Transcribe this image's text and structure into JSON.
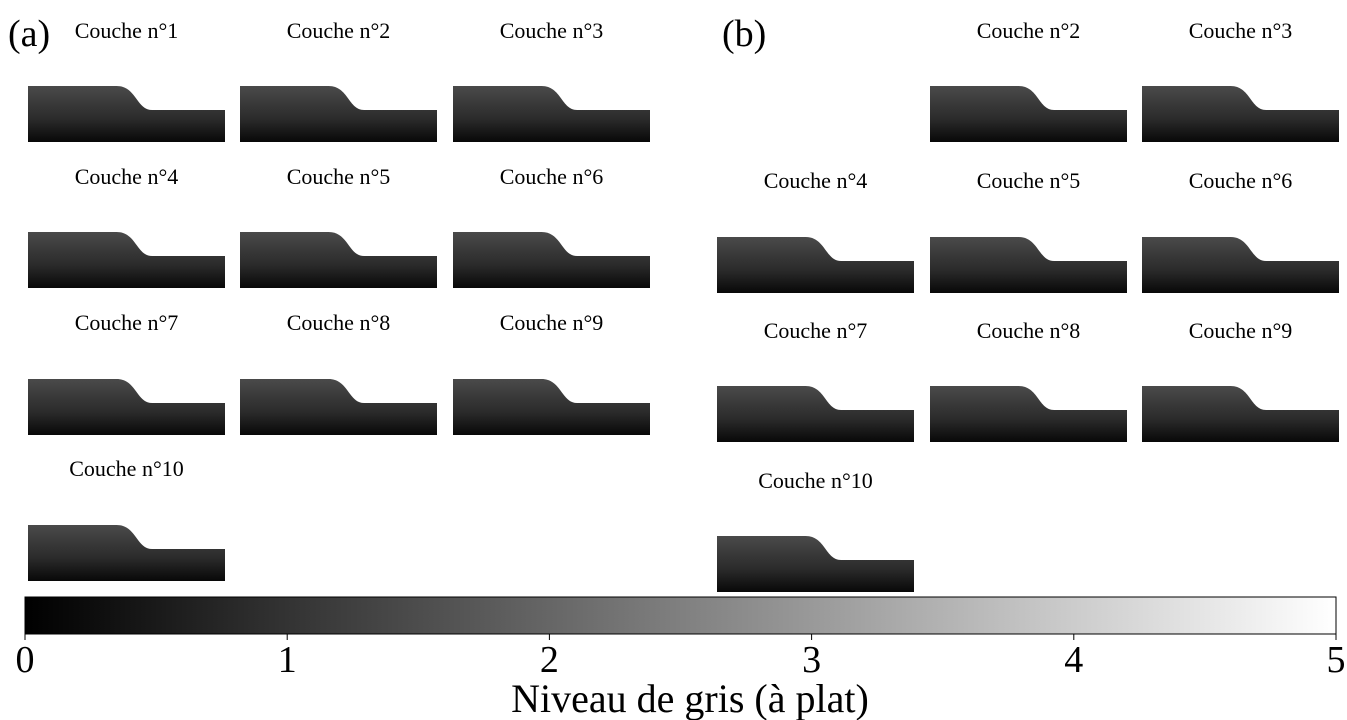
{
  "panels": [
    {
      "label": "(a)",
      "layers": [
        "Couche n°1",
        "Couche n°2",
        "Couche n°3",
        "Couche n°4",
        "Couche n°5",
        "Couche n°6",
        "Couche n°7",
        "Couche n°8",
        "Couche n°9",
        "Couche n°10"
      ]
    },
    {
      "label": "(b)",
      "layers": [
        "Couche n°2",
        "Couche n°3",
        "Couche n°4",
        "Couche n°5",
        "Couche n°6",
        "Couche n°7",
        "Couche n°8",
        "Couche n°9",
        "Couche n°10"
      ]
    }
  ],
  "colorbar": {
    "label": "Niveau de gris (à plat)",
    "lim": [
      0,
      5
    ],
    "ticks": [
      0,
      1,
      2,
      3,
      4,
      5
    ]
  }
}
